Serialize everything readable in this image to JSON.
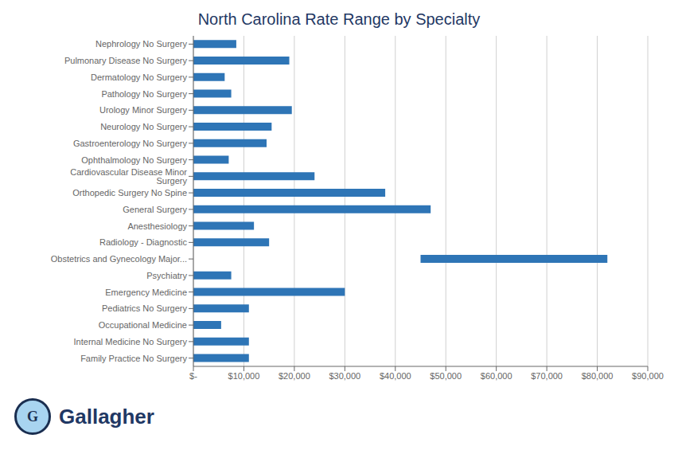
{
  "chart_data": {
    "type": "bar",
    "title": "North Carolina Rate Range by Specialty",
    "orientation": "horizontal",
    "categories": [
      "Nephrology No Surgery",
      "Pulmonary Disease No Surgery",
      "Dermatology No Surgery",
      "Pathology No Surgery",
      "Urology Minor Surgery",
      "Neurology No Surgery",
      "Gastroenterology No Surgery",
      "Ophthalmology No Surgery",
      "Cardiovascular Disease Minor Surgery",
      "Orthopedic Surgery No Spine",
      "General Surgery",
      "Anesthesiology",
      "Radiology - Diagnostic",
      "Obstetrics and Gynecology Major...",
      "Psychiatry",
      "Emergency Medicine",
      "Pediatrics No Surgery",
      "Occupational Medicine",
      "Internal Medicine No Surgery",
      "Family Practice No Surgery"
    ],
    "values": [
      [
        0,
        8500
      ],
      [
        0,
        19000
      ],
      [
        0,
        6200
      ],
      [
        0,
        7500
      ],
      [
        0,
        19500
      ],
      [
        0,
        15500
      ],
      [
        0,
        14500
      ],
      [
        0,
        7000
      ],
      [
        0,
        24000
      ],
      [
        0,
        38000
      ],
      [
        0,
        47000
      ],
      [
        0,
        12000
      ],
      [
        0,
        15000
      ],
      [
        45000,
        82000
      ],
      [
        0,
        7500
      ],
      [
        0,
        30000
      ],
      [
        0,
        11000
      ],
      [
        0,
        5500
      ],
      [
        0,
        11000
      ],
      [
        0,
        11000
      ]
    ],
    "color": "#2e75b6",
    "xlim": [
      0,
      90000
    ],
    "xticks": [
      {
        "value": 0,
        "label": "$-"
      },
      {
        "value": 10000,
        "label": "$10,000"
      },
      {
        "value": 20000,
        "label": "$20,000"
      },
      {
        "value": 30000,
        "label": "$30,000"
      },
      {
        "value": 40000,
        "label": "$40,000"
      },
      {
        "value": 50000,
        "label": "$50,000"
      },
      {
        "value": 60000,
        "label": "$60,000"
      },
      {
        "value": 70000,
        "label": "$70,000"
      },
      {
        "value": 80000,
        "label": "$80,000"
      },
      {
        "value": 90000,
        "label": "$90,000"
      }
    ],
    "grid": "x",
    "annotations": [
      "G",
      "Gallagher"
    ]
  }
}
